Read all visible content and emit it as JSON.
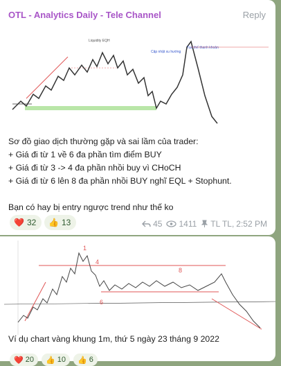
{
  "post1": {
    "channel_name": "OTL - Analytics Daily - Tele Channel",
    "reply_label": "Reply",
    "chart_labels": [
      "Tạo thế thanh khoản",
      "Cập nhật xu hướng",
      "Liquidity EQH"
    ],
    "lines": [
      "Sơ đồ giao dịch thường gặp và sai lầm của trader:",
      "+ Giá đi từ 1 về 6 đa phần tìm điểm BUY",
      "+ Giá đi từ 3 -> 4 đa phần nhồi buy vì CHoCH",
      "+ Giá đi từ 6 lên 8 đa phần nhồi BUY nghĩ  EQL + Stophunt.",
      "",
      "Bạn có hay bị entry ngược trend như thế ko"
    ],
    "reactions": [
      {
        "icon": "heart-icon",
        "emoji": "❤️",
        "count": "32"
      },
      {
        "icon": "thumbs-up-icon",
        "emoji": "👍",
        "count": "13"
      }
    ],
    "meta": {
      "replies": "45",
      "views": "1411",
      "author": "TL TL,",
      "time": "2:52 PM"
    }
  },
  "post2": {
    "chart_marks": [
      "1",
      "4",
      "8",
      "6"
    ],
    "caption": "Ví dụ chart vàng khung 1m, thứ 5 ngày 23 tháng 9 2022",
    "reactions": [
      {
        "icon": "heart-icon",
        "emoji": "❤️",
        "count": "20"
      },
      {
        "icon": "thumbs-up-icon",
        "emoji": "👍",
        "count": "10"
      },
      {
        "icon": "thumbs-up-icon",
        "emoji": "👍",
        "count": "6"
      }
    ]
  },
  "colors": {
    "accent": "#a855c7",
    "background": "#8fa57f",
    "reaction_bg": "#eef3e8"
  }
}
